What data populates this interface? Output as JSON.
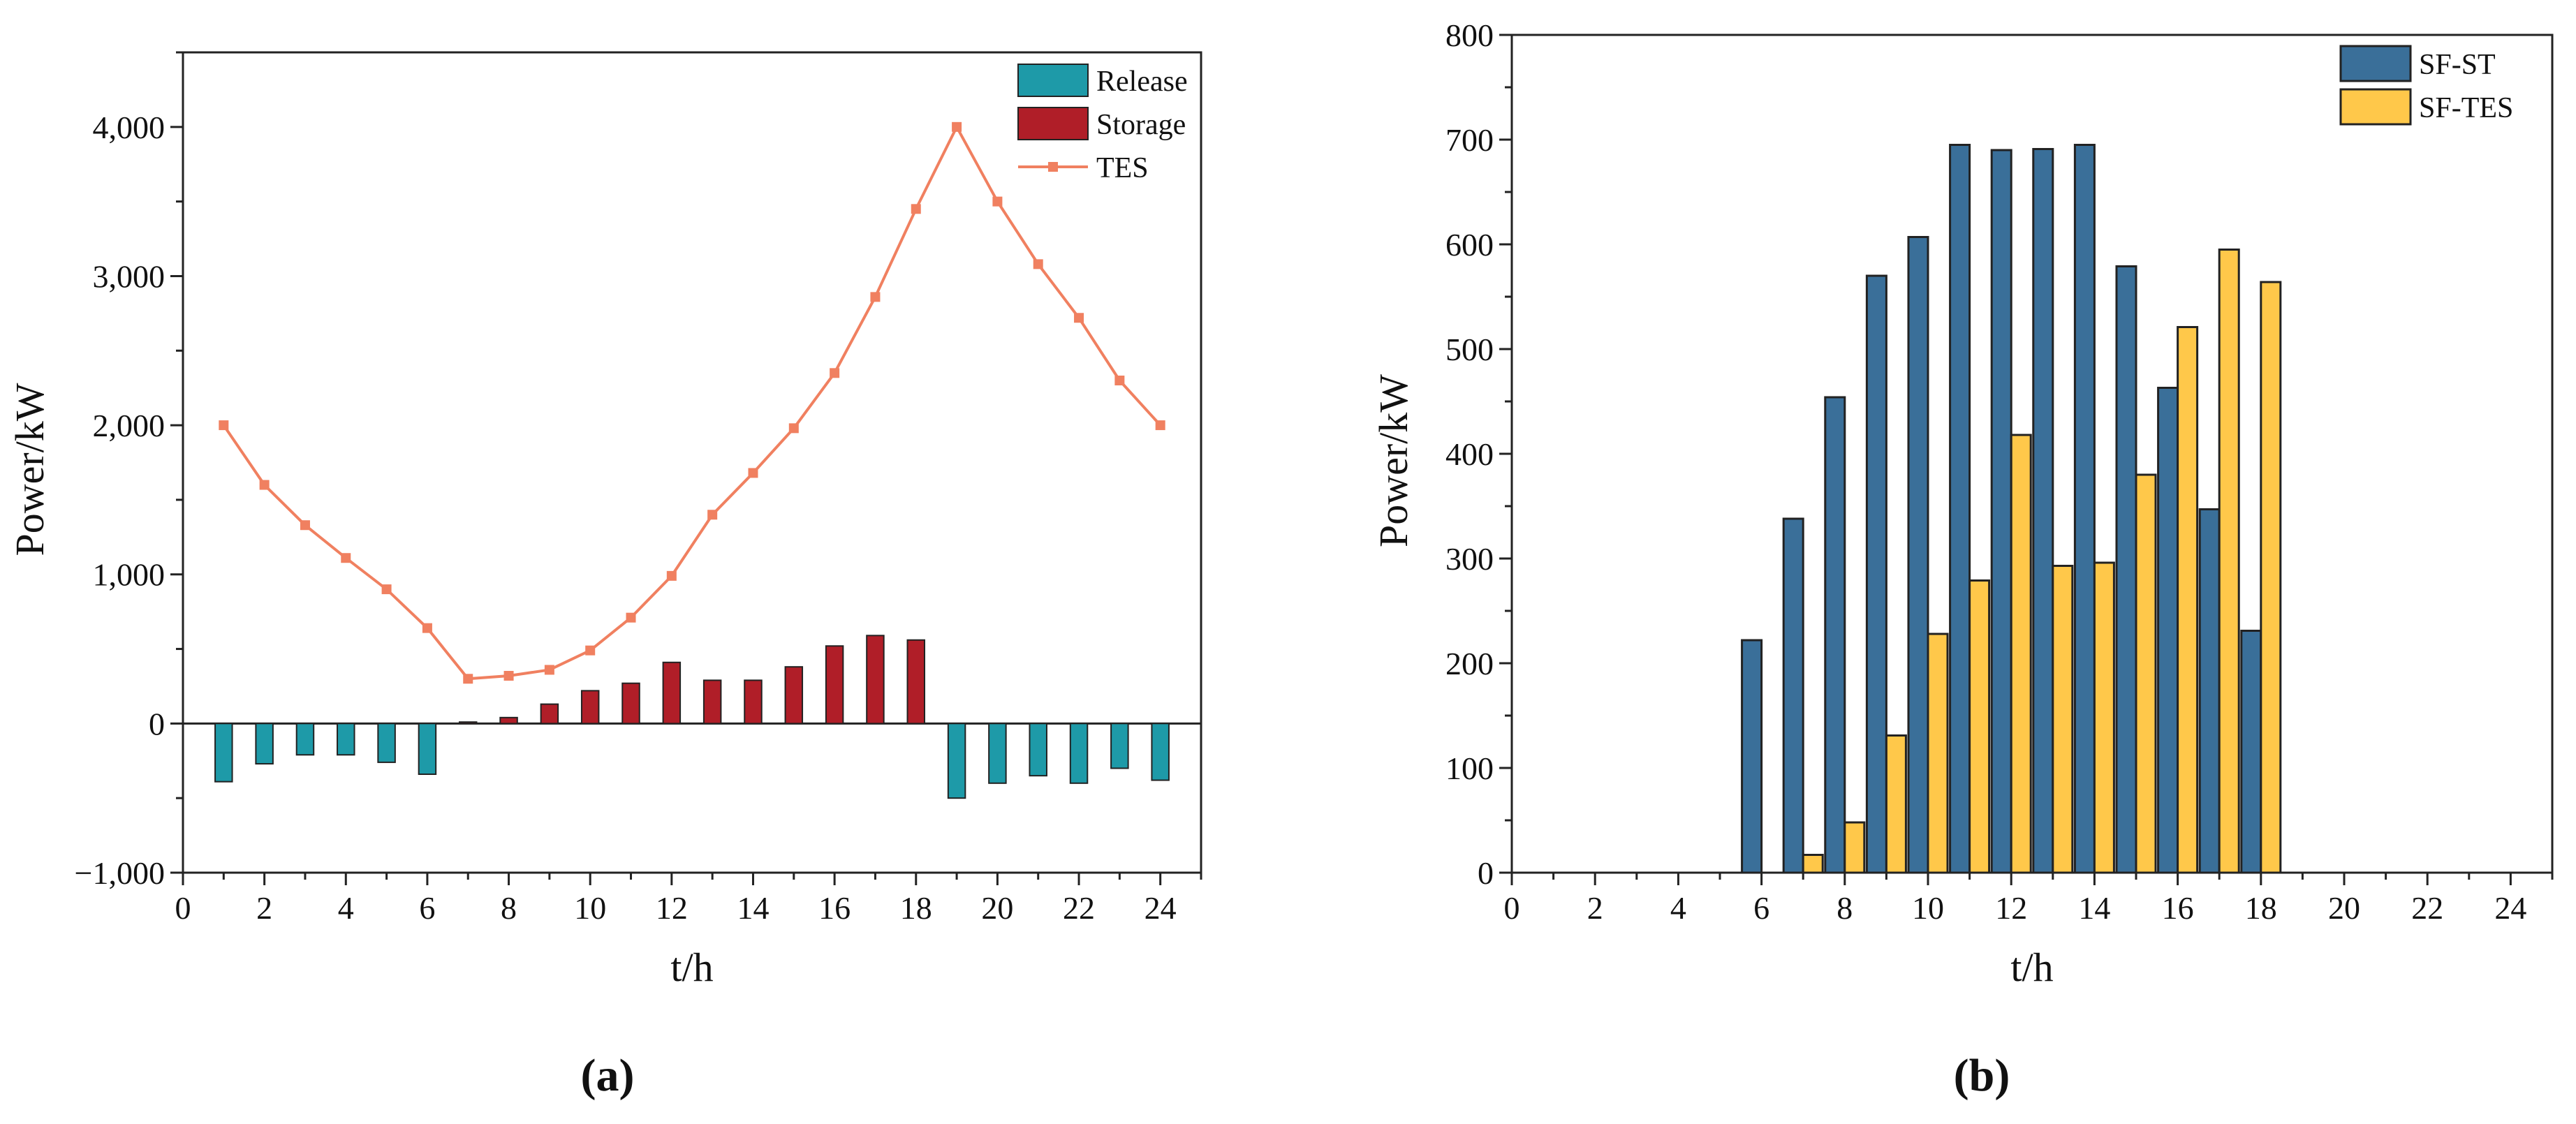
{
  "figure": {
    "panel_a_label": "(a)",
    "panel_b_label": "(b)"
  },
  "chart_data": [
    {
      "type": "bar",
      "id": "a",
      "title": "",
      "xlabel": "t/h",
      "ylabel": "Power/kW",
      "xlim": [
        0,
        25
      ],
      "ylim": [
        -1000,
        4500
      ],
      "xticks": [
        0,
        2,
        4,
        6,
        8,
        10,
        12,
        14,
        16,
        18,
        20,
        22,
        24
      ],
      "yticks": [
        -1000,
        0,
        1000,
        2000,
        3000,
        4000
      ],
      "ytick_labels": [
        "−1,000",
        "0",
        "1,000",
        "2,000",
        "3,000",
        "4,000"
      ],
      "legend_position": "top-right",
      "colors": {
        "Release": "#1e9aa8",
        "Storage": "#b01e28",
        "TES": "#f08060"
      },
      "x": [
        1,
        2,
        3,
        4,
        5,
        6,
        7,
        8,
        9,
        10,
        11,
        12,
        13,
        14,
        15,
        16,
        17,
        18,
        19,
        20,
        21,
        22,
        23,
        24
      ],
      "series": [
        {
          "name": "Release",
          "kind": "bar",
          "values": [
            -390,
            -270,
            -210,
            -210,
            -260,
            -340,
            0,
            0,
            0,
            0,
            0,
            0,
            0,
            0,
            0,
            0,
            0,
            0,
            -500,
            -400,
            -350,
            -400,
            -300,
            -380
          ]
        },
        {
          "name": "Storage",
          "kind": "bar",
          "values": [
            0,
            0,
            0,
            0,
            0,
            0,
            10,
            40,
            130,
            220,
            270,
            410,
            290,
            290,
            380,
            520,
            590,
            560,
            0,
            0,
            0,
            0,
            0,
            0
          ]
        },
        {
          "name": "TES",
          "kind": "line",
          "values": [
            2000,
            1600,
            1330,
            1110,
            900,
            640,
            300,
            320,
            360,
            490,
            710,
            990,
            1400,
            1680,
            1980,
            2350,
            2860,
            3450,
            4000,
            3500,
            3080,
            2720,
            2300,
            2000
          ]
        }
      ]
    },
    {
      "type": "bar",
      "id": "b",
      "title": "",
      "xlabel": "t/h",
      "ylabel": "Power/kW",
      "xlim": [
        0,
        25
      ],
      "ylim": [
        0,
        800
      ],
      "xticks": [
        0,
        2,
        4,
        6,
        8,
        10,
        12,
        14,
        16,
        18,
        20,
        22,
        24
      ],
      "yticks": [
        0,
        100,
        200,
        300,
        400,
        500,
        600,
        700,
        800
      ],
      "ytick_labels": [
        "0",
        "100",
        "200",
        "300",
        "400",
        "500",
        "600",
        "700",
        "800"
      ],
      "legend_position": "top-right",
      "colors": {
        "SF-ST": "#3a6f99",
        "SF-TES": "#ffc84a"
      },
      "x": [
        1,
        2,
        3,
        4,
        5,
        6,
        7,
        8,
        9,
        10,
        11,
        12,
        13,
        14,
        15,
        16,
        17,
        18,
        19,
        20,
        21,
        22,
        23,
        24
      ],
      "series": [
        {
          "name": "SF-ST",
          "values": [
            0,
            0,
            0,
            0,
            0,
            222,
            338,
            454,
            570,
            607,
            695,
            690,
            691,
            695,
            579,
            463,
            347,
            231,
            0,
            0,
            0,
            0,
            0,
            0
          ]
        },
        {
          "name": "SF-TES",
          "values": [
            0,
            0,
            0,
            0,
            0,
            0,
            17,
            48,
            131,
            228,
            279,
            418,
            293,
            296,
            380,
            521,
            595,
            564,
            0,
            0,
            0,
            0,
            0,
            0
          ]
        }
      ]
    }
  ]
}
